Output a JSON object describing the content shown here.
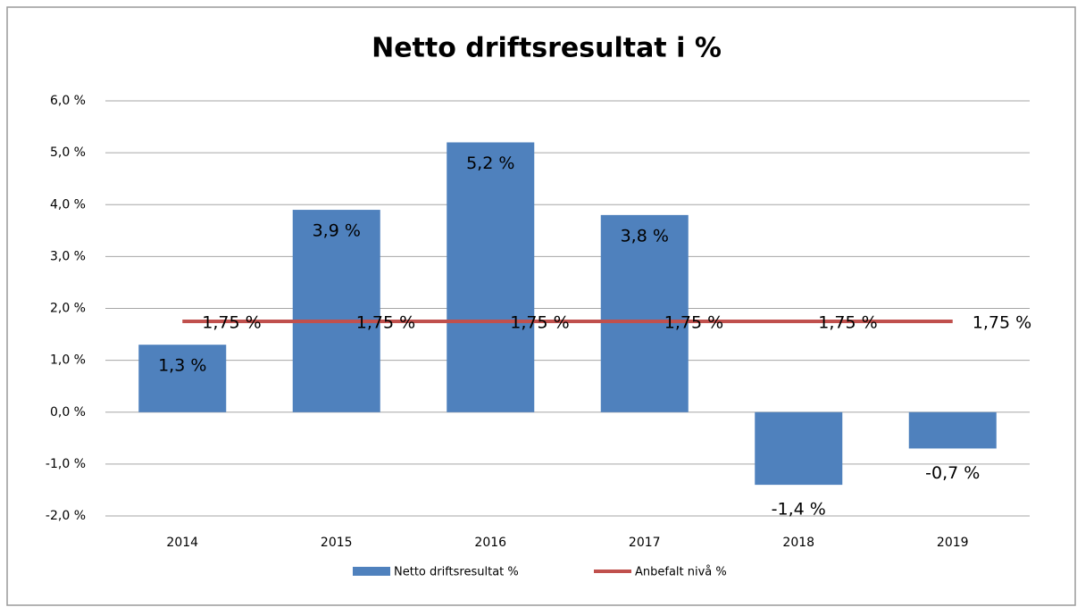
{
  "chart_data": {
    "type": "bar",
    "title": "Netto driftsresultat i %",
    "categories": [
      "2014",
      "2015",
      "2016",
      "2017",
      "2018",
      "2019"
    ],
    "series": [
      {
        "name": "Netto driftsresultat %",
        "color": "#4f81bd",
        "type": "bar",
        "values": [
          1.3,
          3.9,
          5.2,
          3.8,
          -1.4,
          -0.7
        ],
        "value_labels": [
          "1,3 %",
          "3,9 %",
          "5,2 %",
          "3,8 %",
          "-1,4 %",
          "-0,7 %"
        ]
      },
      {
        "name": "Anbefalt nivå %",
        "color": "#c0504d",
        "type": "line",
        "values": [
          1.75,
          1.75,
          1.75,
          1.75,
          1.75,
          1.75
        ],
        "value_labels": [
          "1,75 %",
          "1,75 %",
          "1,75 %",
          "1,75 %",
          "1,75 %",
          "1,75 %"
        ]
      }
    ],
    "ylim": [
      -2,
      6
    ],
    "yticks": [
      {
        "value": -2,
        "label": "-2,0 %"
      },
      {
        "value": -1,
        "label": "-1,0 %"
      },
      {
        "value": 0,
        "label": "0,0 %"
      },
      {
        "value": 1,
        "label": "1,0 %"
      },
      {
        "value": 2,
        "label": "2,0 %"
      },
      {
        "value": 3,
        "label": "3,0 %"
      },
      {
        "value": 4,
        "label": "4,0 %"
      },
      {
        "value": 5,
        "label": "5,0 %"
      },
      {
        "value": 6,
        "label": "6,0 %"
      }
    ],
    "grid": true,
    "legend": "bottom"
  }
}
